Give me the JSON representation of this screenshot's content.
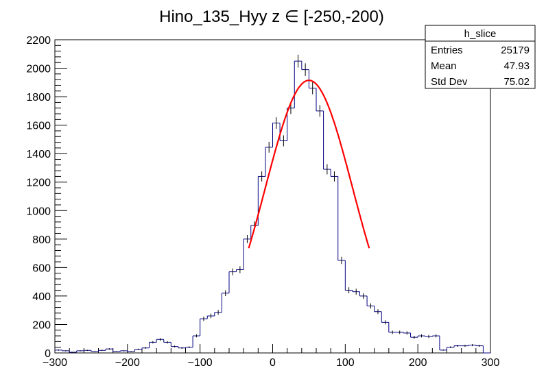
{
  "chart_data": {
    "type": "histogram",
    "title": "Hino_135_Hyy z  ∈ [-250,-200)",
    "xlabel": "",
    "ylabel": "",
    "xlim": [
      -300,
      300
    ],
    "ylim": [
      0,
      2200
    ],
    "x_ticks": [
      "−300",
      "−200",
      "−100",
      "0",
      "100",
      "200",
      "300"
    ],
    "x_tick_values": [
      -300,
      -200,
      -100,
      0,
      100,
      200,
      300
    ],
    "y_ticks": [
      "0",
      "200",
      "400",
      "600",
      "800",
      "1000",
      "1200",
      "1400",
      "1600",
      "1800",
      "2000",
      "2200"
    ],
    "y_tick_values": [
      0,
      200,
      400,
      600,
      800,
      1000,
      1200,
      1400,
      1600,
      1800,
      2000,
      2200
    ],
    "bin_width": 10,
    "bin_low_edges": [
      -300,
      -290,
      -280,
      -270,
      -260,
      -250,
      -240,
      -230,
      -220,
      -210,
      -200,
      -190,
      -180,
      -170,
      -160,
      -150,
      -140,
      -130,
      -120,
      -110,
      -100,
      -90,
      -80,
      -70,
      -60,
      -50,
      -40,
      -30,
      -20,
      -10,
      0,
      10,
      20,
      30,
      40,
      50,
      60,
      70,
      80,
      90,
      100,
      110,
      120,
      130,
      140,
      150,
      160,
      170,
      180,
      190,
      200,
      210,
      220,
      230,
      240,
      250,
      260,
      270,
      280,
      290
    ],
    "series": [
      {
        "kind": "histogram",
        "color": "#000080",
        "values": [
          20,
          15,
          5,
          15,
          18,
          10,
          18,
          28,
          10,
          15,
          10,
          25,
          35,
          75,
          95,
          75,
          45,
          35,
          40,
          120,
          240,
          260,
          285,
          420,
          570,
          585,
          800,
          895,
          1240,
          1445,
          1615,
          1490,
          1720,
          2050,
          1990,
          1860,
          1700,
          1290,
          1240,
          650,
          440,
          430,
          400,
          330,
          290,
          215,
          145,
          145,
          140,
          110,
          120,
          115,
          120,
          20,
          40,
          50,
          50,
          55,
          50,
          0
        ],
        "errors_shown": true
      },
      {
        "kind": "fit",
        "type": "gaussian",
        "color": "#ff0000",
        "amplitude": 1915,
        "mean": 50,
        "sigma": 60,
        "x_range": [
          -33,
          133
        ]
      }
    ],
    "stats_box": {
      "title": "h_slice",
      "rows": [
        {
          "label": "Entries",
          "value": "25179"
        },
        {
          "label": "Mean",
          "value": "47.93"
        },
        {
          "label": "Std Dev",
          "value": "75.02"
        }
      ]
    },
    "grid": false,
    "legend": "top-right"
  }
}
